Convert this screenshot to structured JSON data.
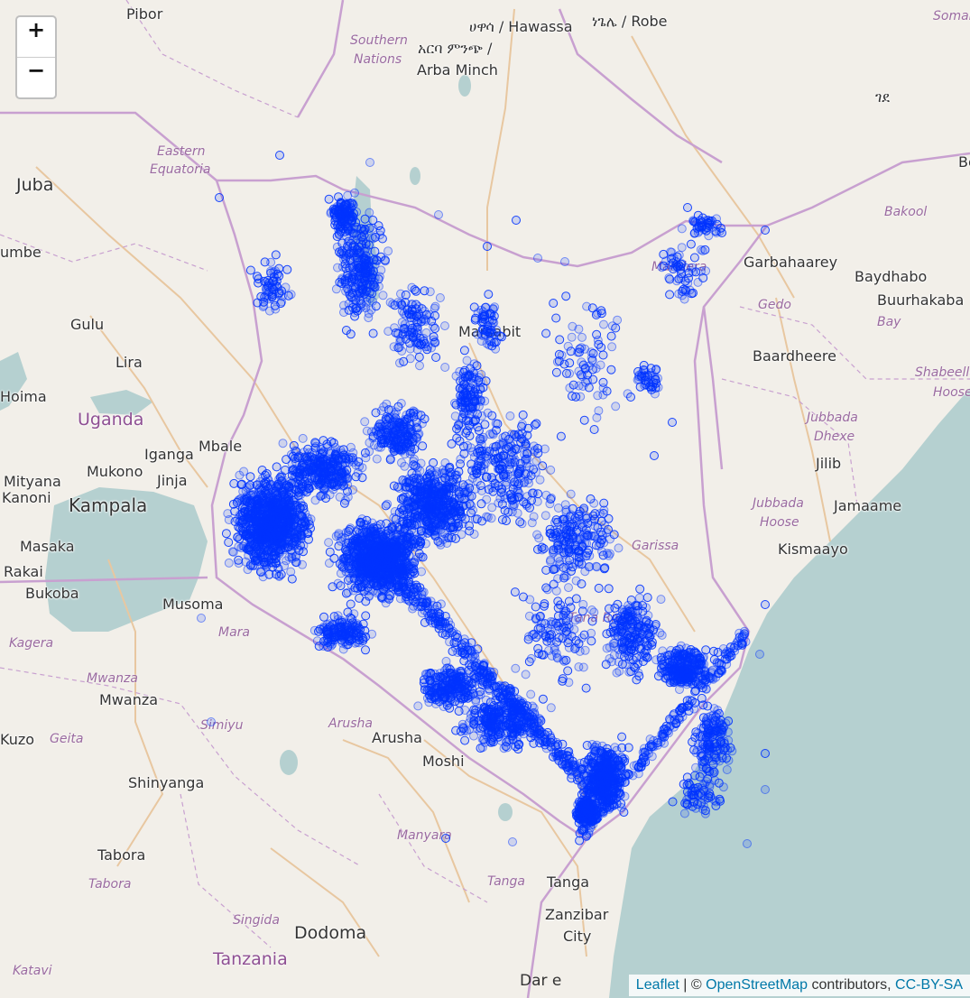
{
  "zoom": {
    "in_label": "+",
    "out_label": "−"
  },
  "attribution": {
    "leaflet": "Leaflet",
    "separator": " | © ",
    "osm": "OpenStreetMap",
    "contributors": " contributors, ",
    "license": "CC-BY-SA"
  },
  "labels": {
    "cities": [
      "Pibor",
      "Juba",
      "Gulu",
      "Lira",
      "Hoima",
      "Iganga",
      "Mbale",
      "Mityana",
      "Mukono",
      "Jinja",
      "Kanoni",
      "Kampala",
      "Masaka",
      "Rakai",
      "Bukoba",
      "Musoma",
      "Mwanza",
      "Shinyanga",
      "Tabora",
      "Arusha",
      "Moshi",
      "Tanga",
      "Zanzibar",
      "City",
      "Dar e",
      "Kuzo",
      "umbe",
      "Marsabit",
      "Garbahaarey",
      "Baydhabo",
      "Buurhakaba",
      "Baardheere",
      "Jilib",
      "Jamaame",
      "Kismaayo",
      "ሀዋሳ / Hawassa",
      "ነጌሌ / Robe",
      "አርባ ምንጭ /",
      "Arba Minch",
      "ገደ"
    ],
    "countries": [
      "Uganda",
      "Tanzania"
    ],
    "capitals": [
      "Dodoma"
    ],
    "regions": [
      "Southern",
      "Nations",
      "Eastern",
      "Equatoria",
      "Bakool",
      "Gedo",
      "Bay",
      "Shabeellaha",
      "Hoose",
      "Jubbada",
      "Dhexe",
      "Jubbada",
      "Hoose",
      "Kagera",
      "Mara",
      "Mwanza",
      "Simiyu",
      "Geita",
      "Arusha",
      "Manyara",
      "Tanga",
      "Singida",
      "Tabora",
      "Katavi",
      "Somal",
      "Bo",
      "Mandera",
      "Garissa",
      "Tana River",
      "Marsabit"
    ]
  },
  "colors": {
    "land": "#f2efe9",
    "water": "#b5d0d0",
    "border": "#c8a0d0",
    "road": "#e8c7a0",
    "marker": "#0033ff"
  },
  "markers": {
    "style": "circle-marker",
    "color": "#0033ff",
    "count_note": ""
  }
}
